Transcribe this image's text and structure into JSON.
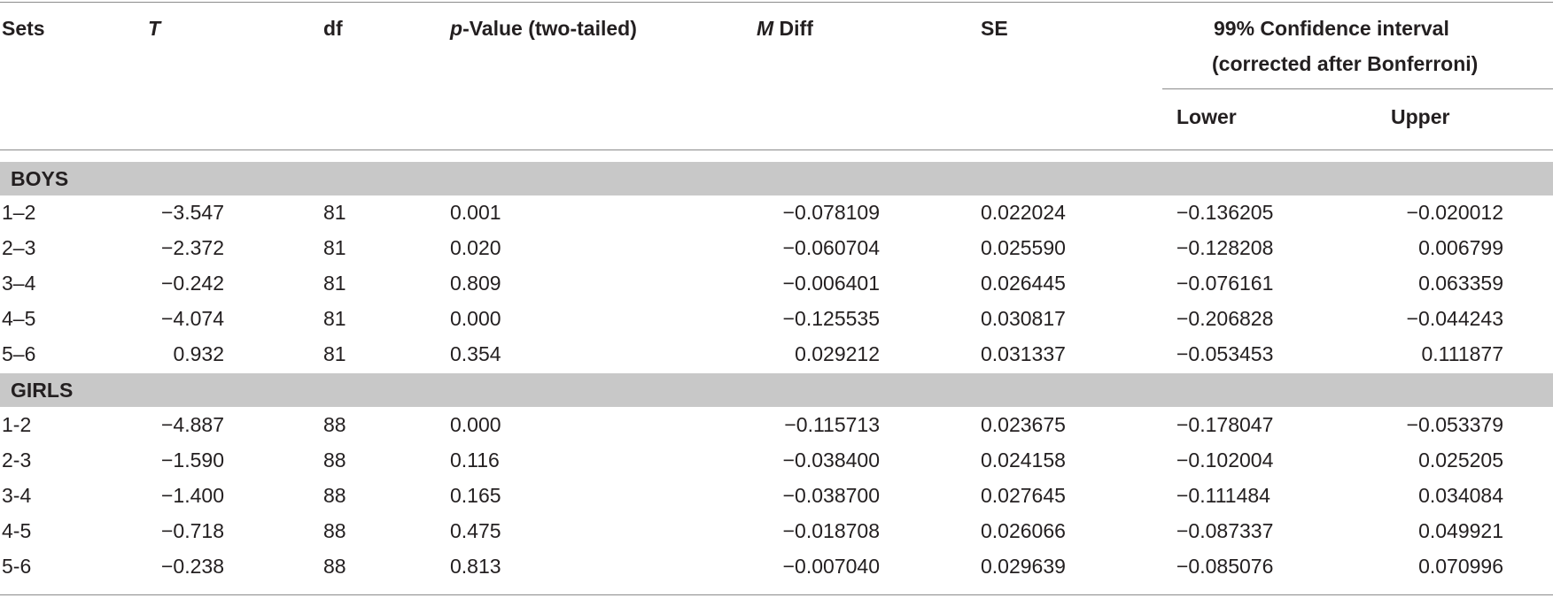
{
  "header": {
    "sets": "Sets",
    "t": "T",
    "df": "df",
    "p_italic": "p",
    "p_rest": "-Value (two-tailed)",
    "m_italic": "M",
    "m_rest": " Diff",
    "se": "SE",
    "ci_line1": "99% Confidence interval",
    "ci_line2": "(corrected after Bonferroni)",
    "lower": "Lower",
    "upper": "Upper"
  },
  "groups": [
    {
      "label": "BOYS",
      "rows": [
        {
          "sets": "1–2",
          "t": "−3.547",
          "df": "81",
          "p": "0.001",
          "mdiff": "−0.078109",
          "se": "0.022024",
          "lower": "−0.136205",
          "upper": "−0.020012"
        },
        {
          "sets": "2–3",
          "t": "−2.372",
          "df": "81",
          "p": "0.020",
          "mdiff": "−0.060704",
          "se": "0.025590",
          "lower": "−0.128208",
          "upper": "0.006799"
        },
        {
          "sets": "3–4",
          "t": "−0.242",
          "df": "81",
          "p": "0.809",
          "mdiff": "−0.006401",
          "se": "0.026445",
          "lower": "−0.076161",
          "upper": "0.063359"
        },
        {
          "sets": "4–5",
          "t": "−4.074",
          "df": "81",
          "p": "0.000",
          "mdiff": "−0.125535",
          "se": "0.030817",
          "lower": "−0.206828",
          "upper": "−0.044243"
        },
        {
          "sets": "5–6",
          "t": "0.932",
          "df": "81",
          "p": "0.354",
          "mdiff": "0.029212",
          "se": "0.031337",
          "lower": "−0.053453",
          "upper": "0.111877"
        }
      ]
    },
    {
      "label": "GIRLS",
      "rows": [
        {
          "sets": "1-2",
          "t": "−4.887",
          "df": "88",
          "p": "0.000",
          "mdiff": "−0.115713",
          "se": "0.023675",
          "lower": "−0.178047",
          "upper": "−0.053379"
        },
        {
          "sets": "2-3",
          "t": "−1.590",
          "df": "88",
          "p": "0.116",
          "mdiff": "−0.038400",
          "se": "0.024158",
          "lower": "−0.102004",
          "upper": "0.025205"
        },
        {
          "sets": "3-4",
          "t": "−1.400",
          "df": "88",
          "p": "0.165",
          "mdiff": "−0.038700",
          "se": "0.027645",
          "lower": "−0.111484",
          "upper": "0.034084"
        },
        {
          "sets": "4-5",
          "t": "−0.718",
          "df": "88",
          "p": "0.475",
          "mdiff": "−0.018708",
          "se": "0.026066",
          "lower": "−0.087337",
          "upper": "0.049921"
        },
        {
          "sets": "5-6",
          "t": "−0.238",
          "df": "88",
          "p": "0.813",
          "mdiff": "−0.007040",
          "se": "0.029639",
          "lower": "−0.085076",
          "upper": "0.070996"
        }
      ]
    }
  ],
  "colors": {
    "group_band": "#c8c8c8",
    "rule": "#8a8a8a",
    "text": "#231f20"
  }
}
